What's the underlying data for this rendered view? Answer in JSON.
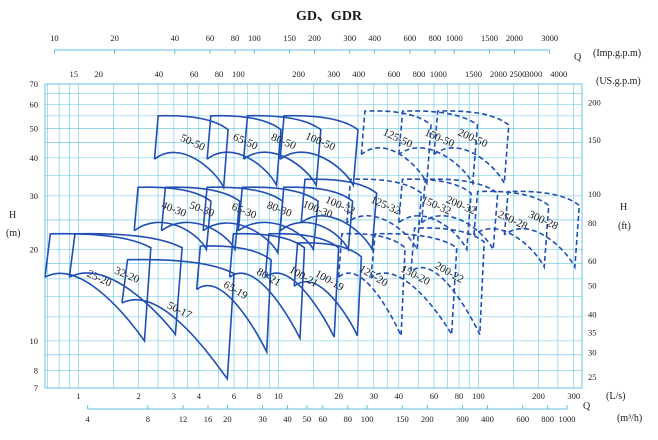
{
  "chart_data": {
    "type": "line",
    "title": "GD、GDR",
    "h_label_left": [
      "H",
      "(m)"
    ],
    "h_label_right": [
      "H",
      "(ft)"
    ],
    "top_axis_1": {
      "q_label": "Q",
      "unit": "(Imp.g.p.m)",
      "ticks": [
        "10",
        "20",
        "40",
        "60",
        "80",
        "100",
        "150",
        "200",
        "300",
        "400",
        "600",
        "800",
        "1000",
        "1500",
        "2000",
        "3000"
      ],
      "values": [
        10,
        20,
        40,
        60,
        80,
        100,
        150,
        200,
        300,
        400,
        600,
        800,
        1000,
        1500,
        2000,
        3000
      ]
    },
    "top_axis_2": {
      "unit": "(US.g.p.m)",
      "ticks": [
        "15",
        "20",
        "40",
        "60",
        "80",
        "100",
        "200",
        "300",
        "400",
        "600",
        "800",
        "1000",
        "1500",
        "2000",
        "2500",
        "3000",
        "4000"
      ],
      "values": [
        15,
        20,
        40,
        60,
        80,
        100,
        200,
        300,
        400,
        600,
        800,
        1000,
        1500,
        2000,
        2500,
        3000,
        4000
      ]
    },
    "bottom_axis_1": {
      "unit": "(L/s)",
      "ticks": [
        "1",
        "2",
        "3",
        "4",
        "6",
        "8",
        "10",
        "20",
        "30",
        "40",
        "60",
        "80",
        "100",
        "200",
        "300"
      ],
      "values": [
        1,
        2,
        3,
        4,
        6,
        8,
        10,
        20,
        30,
        40,
        60,
        80,
        100,
        200,
        300
      ]
    },
    "bottom_axis_2": {
      "q_label": "Q",
      "unit": "(m³/h)",
      "ticks": [
        "4",
        "8",
        "12",
        "16",
        "20",
        "30",
        "40",
        "50",
        "60",
        "80",
        "100",
        "150",
        "200",
        "300",
        "400",
        "600",
        "800",
        "1000"
      ],
      "values": [
        4,
        8,
        12,
        16,
        20,
        30,
        40,
        50,
        60,
        80,
        100,
        150,
        200,
        300,
        400,
        600,
        800,
        1000
      ]
    },
    "left_axis": {
      "ticks": [
        "7",
        "8",
        "10",
        "20",
        "30",
        "40",
        "50",
        "60",
        "70"
      ],
      "values": [
        7,
        8,
        10,
        20,
        30,
        40,
        50,
        60,
        70
      ]
    },
    "right_axis": {
      "ticks": [
        "25",
        "30",
        "35",
        "40",
        "50",
        "60",
        "80",
        "100",
        "150",
        "200"
      ],
      "values": [
        25,
        30,
        35,
        40,
        50,
        60,
        80,
        100,
        150,
        200
      ]
    },
    "x_range_ls": [
      0.68,
      330
    ],
    "y_range_m": [
      7,
      70
    ],
    "scale": "log-log",
    "grid": true,
    "curve_color": "#1f4fb5",
    "grid_color": "#5cc0e4",
    "models": [
      {
        "name": "25-20",
        "style": "solid",
        "qmin": 0.68,
        "qmax": 2.3,
        "h0": 22.5,
        "hc": 10
      },
      {
        "name": "32-20",
        "style": "solid",
        "qmin": 0.9,
        "qmax": 3.3,
        "h0": 22.5,
        "hc": 10.5
      },
      {
        "name": "40-30",
        "style": "solid",
        "qmin": 1.9,
        "qmax": 4.6,
        "h0": 32,
        "hc": 20
      },
      {
        "name": "50-17",
        "style": "solid",
        "qmin": 1.65,
        "qmax": 6.0,
        "h0": 18.5,
        "hc": 7.5
      },
      {
        "name": "50-30",
        "style": "solid",
        "qmin": 2.6,
        "qmax": 6.4,
        "h0": 32,
        "hc": 20
      },
      {
        "name": "50-50",
        "style": "solid",
        "qmin": 2.4,
        "qmax": 5.6,
        "h0": 55,
        "hc": 32
      },
      {
        "name": "65-19",
        "style": "solid",
        "qmin": 3.9,
        "qmax": 9.2,
        "h0": 20.5,
        "hc": 9.2
      },
      {
        "name": "65-30",
        "style": "solid",
        "qmin": 4.2,
        "qmax": 10.5,
        "h0": 32,
        "hc": 19.5
      },
      {
        "name": "65-50",
        "style": "solid",
        "qmin": 4.4,
        "qmax": 10.3,
        "h0": 55,
        "hc": 32.5
      },
      {
        "name": "80-21",
        "style": "solid",
        "qmin": 5.7,
        "qmax": 13.5,
        "h0": 22.5,
        "hc": 10.2
      },
      {
        "name": "80-30",
        "style": "solid",
        "qmin": 6.3,
        "qmax": 15.8,
        "h0": 32,
        "hc": 20
      },
      {
        "name": "80-50",
        "style": "solid",
        "qmin": 6.7,
        "qmax": 16.3,
        "h0": 55,
        "hc": 32.5
      },
      {
        "name": "100-19",
        "style": "solid",
        "qmin": 12.0,
        "qmax": 26.0,
        "h0": 21,
        "hc": 10.4
      },
      {
        "name": "100-21",
        "style": "solid",
        "qmin": 8.6,
        "qmax": 20.0,
        "h0": 22.5,
        "hc": 10.3
      },
      {
        "name": "100-30",
        "style": "solid",
        "qmin": 10.2,
        "qmax": 23.5,
        "h0": 32,
        "hc": 20
      },
      {
        "name": "100-32",
        "style": "solid",
        "qmin": 13.0,
        "qmax": 31.0,
        "h0": 34,
        "hc": 20
      },
      {
        "name": "100-50",
        "style": "solid",
        "qmin": 10.2,
        "qmax": 25.0,
        "h0": 55,
        "hc": 32.5
      },
      {
        "name": "125-20",
        "style": "dashed",
        "qmin": 20.0,
        "qmax": 43.0,
        "h0": 22.5,
        "hc": 10.4
      },
      {
        "name": "125-32",
        "style": "dashed",
        "qmin": 22.0,
        "qmax": 52.0,
        "h0": 34,
        "hc": 20
      },
      {
        "name": "125-50",
        "style": "dashed",
        "qmin": 26.0,
        "qmax": 58.0,
        "h0": 57,
        "hc": 33
      },
      {
        "name": "150-20",
        "style": "dashed",
        "qmin": 29.0,
        "qmax": 78.0,
        "h0": 22.5,
        "hc": 10.5
      },
      {
        "name": "150-32",
        "style": "dashed",
        "qmin": 40.0,
        "qmax": 92.0,
        "h0": 34,
        "hc": 20
      },
      {
        "name": "150-50",
        "style": "dashed",
        "qmin": 40.0,
        "qmax": 99.0,
        "h0": 57,
        "hc": 33
      },
      {
        "name": "200-22",
        "style": "dashed",
        "qmin": 46.0,
        "qmax": 107.0,
        "h0": 23.5,
        "hc": 10.5
      },
      {
        "name": "200-32",
        "style": "dashed",
        "qmin": 52.0,
        "qmax": 125.0,
        "h0": 34,
        "hc": 20
      },
      {
        "name": "200-50",
        "style": "dashed",
        "qmin": 60.0,
        "qmax": 142.0,
        "h0": 57,
        "hc": 33
      },
      {
        "name": "250-28",
        "style": "dashed",
        "qmin": 95.0,
        "qmax": 225.0,
        "h0": 31,
        "hc": 17.5
      },
      {
        "name": "300-28",
        "style": "dashed",
        "qmin": 135.0,
        "qmax": 320.0,
        "h0": 31,
        "hc": 17.5
      }
    ]
  }
}
